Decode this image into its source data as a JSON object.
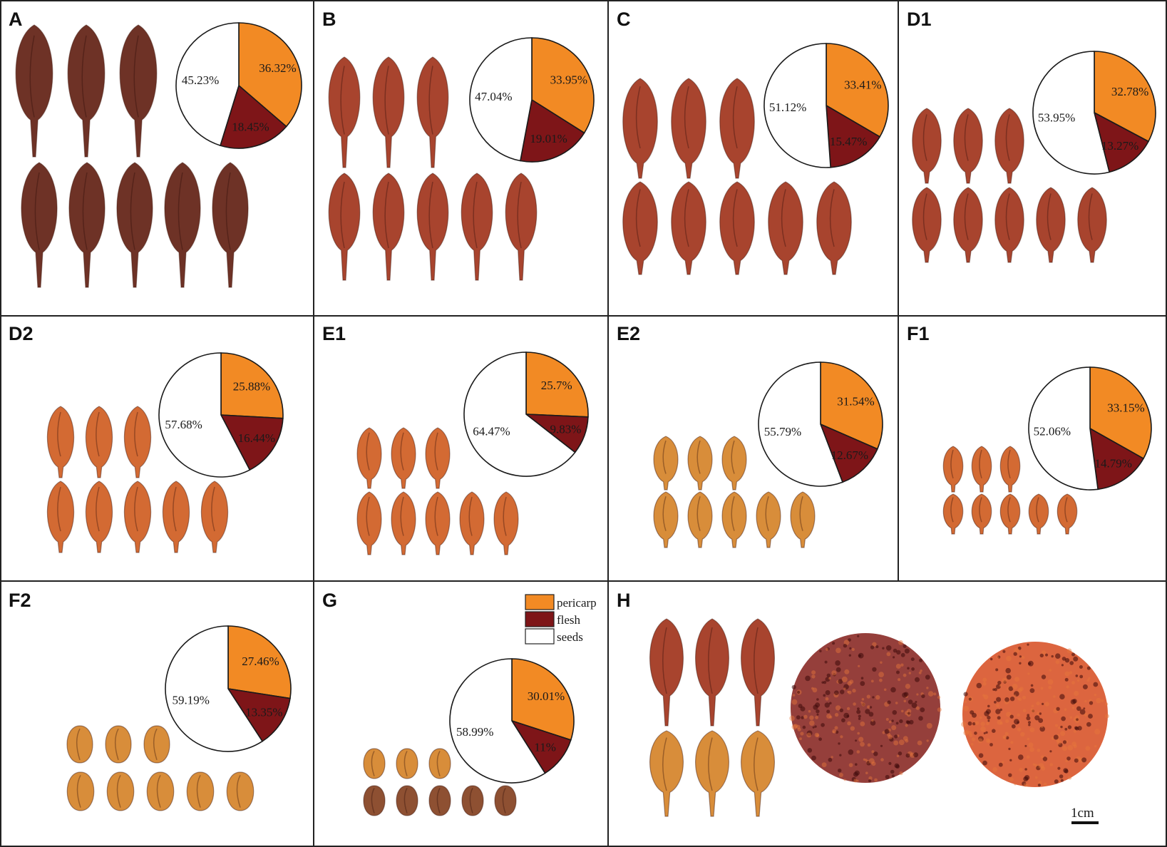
{
  "colors": {
    "pericarp": "#f28a24",
    "flesh": "#7e1518",
    "seeds": "#ffffff",
    "fruit_dark": "#6e3226",
    "fruit_red": "#a8442e",
    "fruit_orange": "#d36a33",
    "fruit_yellow": "#d88d3a",
    "powder": "#8a2a26",
    "powder_orange": "#d8542a"
  },
  "legend": {
    "pericarp": "pericarp",
    "flesh": "flesh",
    "seeds": "seeds"
  },
  "scale_bar": "1cm",
  "chart_data": [
    {
      "type": "pie",
      "panel": "A",
      "categories": [
        "pericarp",
        "flesh",
        "seeds"
      ],
      "values": [
        36.32,
        18.45,
        45.23
      ],
      "labels": [
        "36.32%",
        "18.45%",
        "45.23%"
      ]
    },
    {
      "type": "pie",
      "panel": "B",
      "categories": [
        "pericarp",
        "flesh",
        "seeds"
      ],
      "values": [
        33.95,
        19.01,
        47.04
      ],
      "labels": [
        "33.95%",
        "19.01%",
        "47.04%"
      ]
    },
    {
      "type": "pie",
      "panel": "C",
      "categories": [
        "pericarp",
        "flesh",
        "seeds"
      ],
      "values": [
        33.41,
        15.47,
        51.12
      ],
      "labels": [
        "33.41%",
        "15.47%",
        "51.12%"
      ]
    },
    {
      "type": "pie",
      "panel": "D1",
      "categories": [
        "pericarp",
        "flesh",
        "seeds"
      ],
      "values": [
        32.78,
        13.27,
        53.95
      ],
      "labels": [
        "32.78%",
        "13.27%",
        "53.95%"
      ]
    },
    {
      "type": "pie",
      "panel": "D2",
      "categories": [
        "pericarp",
        "flesh",
        "seeds"
      ],
      "values": [
        25.88,
        16.44,
        57.68
      ],
      "labels": [
        "25.88%",
        "16.44%",
        "57.68%"
      ]
    },
    {
      "type": "pie",
      "panel": "E1",
      "categories": [
        "pericarp",
        "flesh",
        "seeds"
      ],
      "values": [
        25.7,
        9.83,
        64.47
      ],
      "labels": [
        "25.7%",
        "9.83%",
        "64.47%"
      ]
    },
    {
      "type": "pie",
      "panel": "E2",
      "categories": [
        "pericarp",
        "flesh",
        "seeds"
      ],
      "values": [
        31.54,
        12.67,
        55.79
      ],
      "labels": [
        "31.54%",
        "12.67%",
        "55.79%"
      ]
    },
    {
      "type": "pie",
      "panel": "F1",
      "categories": [
        "pericarp",
        "flesh",
        "seeds"
      ],
      "values": [
        33.15,
        14.79,
        52.06
      ],
      "labels": [
        "33.15%",
        "14.79%",
        "52.06%"
      ]
    },
    {
      "type": "pie",
      "panel": "F2",
      "categories": [
        "pericarp",
        "flesh",
        "seeds"
      ],
      "values": [
        27.46,
        13.35,
        59.19
      ],
      "labels": [
        "27.46%",
        "13.35%",
        "59.19%"
      ]
    },
    {
      "type": "pie",
      "panel": "G",
      "categories": [
        "pericarp",
        "flesh",
        "seeds"
      ],
      "values": [
        30.01,
        11,
        58.99
      ],
      "labels": [
        "30.01%",
        "11%",
        "58.99%"
      ]
    }
  ],
  "panels": [
    {
      "id": "A",
      "label": "A",
      "fruit_shape": "long",
      "fruit_tone": "dark",
      "fruit_counts": [
        3,
        5
      ]
    },
    {
      "id": "B",
      "label": "B",
      "fruit_shape": "long",
      "fruit_tone": "red",
      "fruit_counts": [
        3,
        5
      ]
    },
    {
      "id": "C",
      "label": "C",
      "fruit_shape": "oval",
      "fruit_tone": "red",
      "fruit_counts": [
        3,
        5
      ]
    },
    {
      "id": "D1",
      "label": "D1",
      "fruit_shape": "oval",
      "fruit_tone": "red",
      "fruit_counts": [
        3,
        5
      ]
    },
    {
      "id": "D2",
      "label": "D2",
      "fruit_shape": "oval",
      "fruit_tone": "orange",
      "fruit_counts": [
        3,
        5
      ]
    },
    {
      "id": "E1",
      "label": "E1",
      "fruit_shape": "oval",
      "fruit_tone": "orange",
      "fruit_counts": [
        3,
        5
      ]
    },
    {
      "id": "E2",
      "label": "E2",
      "fruit_shape": "oval",
      "fruit_tone": "yellow",
      "fruit_counts": [
        3,
        5
      ]
    },
    {
      "id": "F1",
      "label": "F1",
      "fruit_shape": "oval",
      "fruit_tone": "orange",
      "fruit_counts": [
        3,
        5
      ]
    },
    {
      "id": "F2",
      "label": "F2",
      "fruit_shape": "round",
      "fruit_tone": "yellow",
      "fruit_counts": [
        3,
        5
      ]
    },
    {
      "id": "G",
      "label": "G",
      "fruit_shape": "round",
      "fruit_tone": "yellow",
      "fruit_counts": [
        3,
        5
      ]
    },
    {
      "id": "H",
      "label": "H",
      "fruit_shape": "long",
      "fruit_tone": "red",
      "fruit_counts": [
        3,
        3
      ]
    }
  ]
}
